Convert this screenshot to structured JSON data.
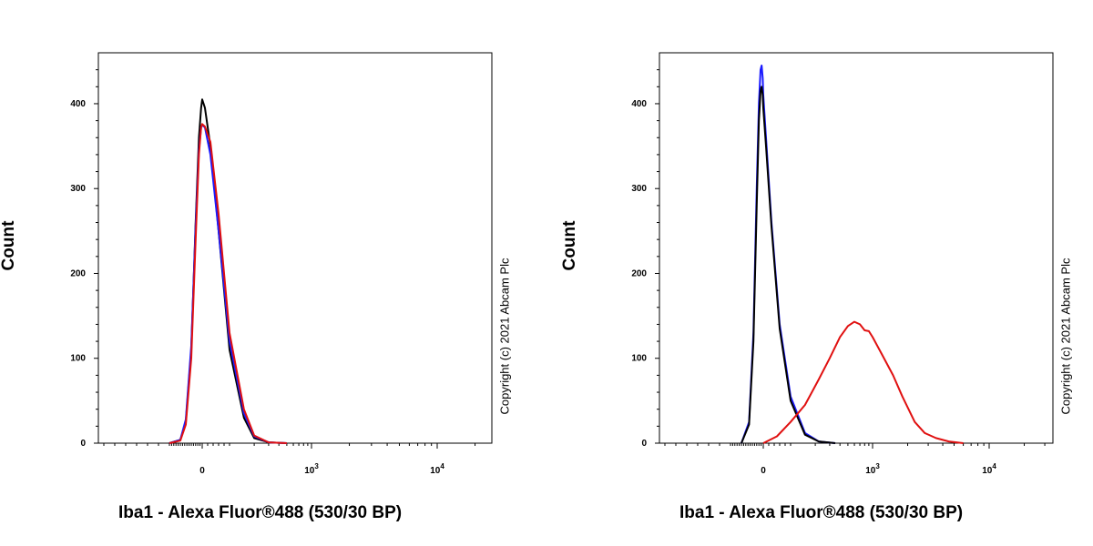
{
  "chart_data": [
    {
      "type": "line",
      "xlabel": "Iba1 - Alexa Fluor®488 (530/30 BP)",
      "ylabel": "Count",
      "annotation": "Copyright (c) 2021 Abcam Plc",
      "x_scale": "biexponential",
      "x_ticks": [
        {
          "value": 0,
          "label": "0"
        },
        {
          "value": 1000,
          "label": "10",
          "sup": "3"
        },
        {
          "value": 10000,
          "label": "10",
          "sup": "4"
        }
      ],
      "y_ticks": [
        0,
        100,
        200,
        300,
        400
      ],
      "ylim": [
        0,
        460
      ],
      "grid": false,
      "series": [
        {
          "color": "#000000",
          "x": [
            -300,
            -200,
            -150,
            -100,
            -60,
            -30,
            -10,
            0,
            10,
            30,
            60,
            100,
            150,
            200,
            300,
            500
          ],
          "y": [
            0,
            4,
            25,
            110,
            260,
            360,
            395,
            405,
            395,
            350,
            250,
            110,
            30,
            6,
            1,
            0
          ]
        },
        {
          "color": "#1a1aff",
          "x": [
            -300,
            -200,
            -150,
            -100,
            -60,
            -30,
            -10,
            0,
            10,
            30,
            60,
            100,
            150,
            200,
            300,
            500
          ],
          "y": [
            0,
            4,
            28,
            115,
            255,
            345,
            372,
            375,
            372,
            340,
            250,
            120,
            35,
            8,
            1,
            0
          ]
        },
        {
          "color": "#e01010",
          "x": [
            -300,
            -200,
            -150,
            -100,
            -60,
            -30,
            -10,
            0,
            10,
            30,
            60,
            100,
            150,
            200,
            300,
            500
          ],
          "y": [
            0,
            3,
            22,
            100,
            240,
            340,
            372,
            376,
            373,
            355,
            270,
            130,
            40,
            9,
            1,
            0
          ]
        }
      ]
    },
    {
      "type": "line",
      "xlabel": "Iba1 - Alexa Fluor®488 (530/30 BP)",
      "ylabel": "Count",
      "annotation": "Copyright (c) 2021 Abcam Plc",
      "x_scale": "biexponential",
      "x_ticks": [
        {
          "value": 0,
          "label": "0"
        },
        {
          "value": 1000,
          "label": "10",
          "sup": "3"
        },
        {
          "value": 10000,
          "label": "10",
          "sup": "4"
        }
      ],
      "y_ticks": [
        0,
        100,
        200,
        300,
        400
      ],
      "ylim": [
        0,
        460
      ],
      "grid": false,
      "series": [
        {
          "color": "#1a1aff",
          "x": [
            -200,
            -130,
            -90,
            -60,
            -40,
            -25,
            -15,
            -5,
            0,
            10,
            30,
            60,
            100,
            150,
            220,
            350
          ],
          "y": [
            0,
            25,
            130,
            300,
            400,
            440,
            445,
            430,
            410,
            360,
            260,
            140,
            55,
            12,
            2,
            0
          ]
        },
        {
          "color": "#000000",
          "x": [
            -200,
            -130,
            -90,
            -60,
            -40,
            -25,
            -15,
            -5,
            0,
            10,
            30,
            60,
            100,
            150,
            220,
            350
          ],
          "y": [
            0,
            22,
            120,
            280,
            380,
            415,
            420,
            410,
            395,
            350,
            255,
            135,
            50,
            10,
            2,
            0
          ]
        },
        {
          "color": "#e01010",
          "x": [
            0,
            50,
            100,
            150,
            220,
            300,
            400,
            500,
            600,
            700,
            800,
            900,
            1000,
            1200,
            1500,
            1800,
            2300,
            2800,
            3500,
            4500,
            6000
          ],
          "y": [
            0,
            8,
            25,
            45,
            75,
            100,
            125,
            138,
            143,
            140,
            133,
            132,
            125,
            105,
            80,
            55,
            25,
            12,
            6,
            2,
            0
          ]
        }
      ]
    }
  ]
}
